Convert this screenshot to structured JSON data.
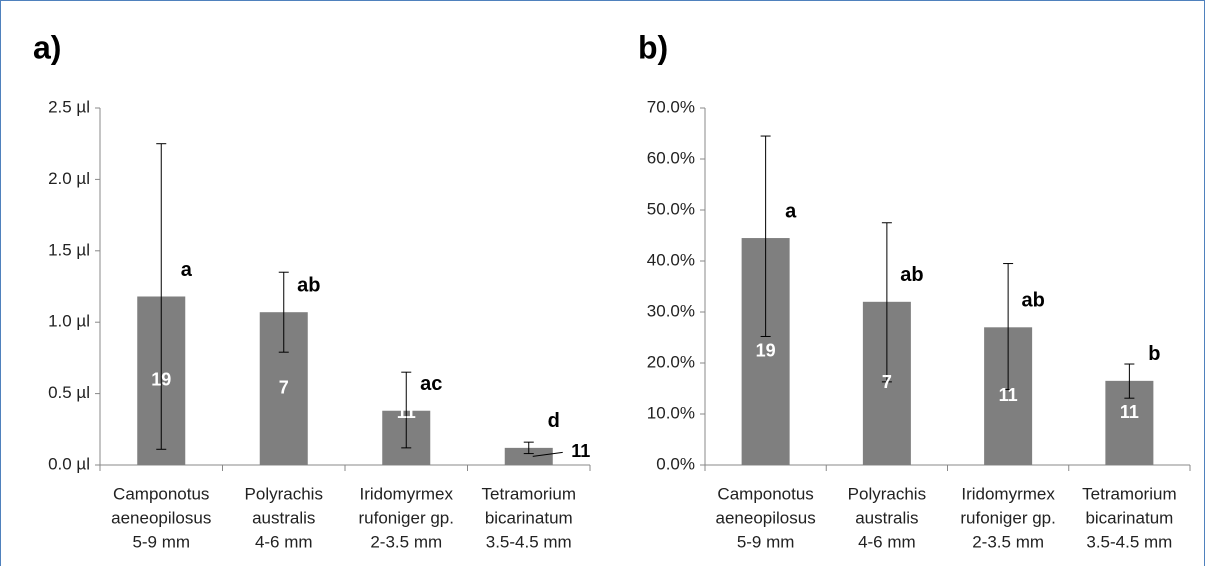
{
  "chart_data": [
    {
      "type": "bar",
      "title": "a)",
      "categories": [
        [
          "Camponotus",
          "aeneopilosus",
          "5-9 mm"
        ],
        [
          "Polyrachis",
          "australis",
          "4-6 mm"
        ],
        [
          "Iridomyrmex",
          "rufoniger gp.",
          "2-3.5 mm"
        ],
        [
          "Tetramorium",
          "bicarinatum",
          "3.5-4.5 mm"
        ]
      ],
      "values": [
        1.18,
        1.07,
        0.38,
        0.12
      ],
      "lower": [
        0.11,
        0.79,
        0.12,
        0.08
      ],
      "upper": [
        2.25,
        1.35,
        0.65,
        0.16
      ],
      "n": [
        19,
        7,
        11,
        11
      ],
      "letters": [
        "a",
        "ab",
        "ac",
        "d"
      ],
      "color": "#7f7f7f",
      "ylim": [
        0,
        2.5
      ],
      "yticks": [
        {
          "value": 0,
          "label": "0.0 µl"
        },
        {
          "value": 0.5,
          "label": "0.5 µl"
        },
        {
          "value": 1,
          "label": "1.0 µl"
        },
        {
          "value": 1.5,
          "label": "1.5 µl"
        },
        {
          "value": 2,
          "label": "2.0 µl"
        },
        {
          "value": 2.5,
          "label": "2.5 µl"
        }
      ]
    },
    {
      "type": "bar",
      "title": "b)",
      "categories": [
        [
          "Camponotus",
          "aeneopilosus",
          "5-9 mm"
        ],
        [
          "Polyrachis",
          "australis",
          "4-6 mm"
        ],
        [
          "Iridomyrmex",
          "rufoniger gp.",
          "2-3.5 mm"
        ],
        [
          "Tetramorium",
          "bicarinatum",
          "3.5-4.5 mm"
        ]
      ],
      "values": [
        44.5,
        32,
        27,
        16.5
      ],
      "lower": [
        25.2,
        16.3,
        14.8,
        13.1
      ],
      "upper": [
        64.5,
        47.5,
        39.5,
        19.8
      ],
      "n": [
        19,
        7,
        11,
        11
      ],
      "letters": [
        "a",
        "ab",
        "ab",
        "b"
      ],
      "color": "#7f7f7f",
      "ylim": [
        0,
        70
      ],
      "yticks": [
        {
          "value": 0,
          "label": "0.0%"
        },
        {
          "value": 10,
          "label": "10.0%"
        },
        {
          "value": 20,
          "label": "20.0%"
        },
        {
          "value": 30,
          "label": "30.0%"
        },
        {
          "value": 40,
          "label": "40.0%"
        },
        {
          "value": 50,
          "label": "50.0%"
        },
        {
          "value": 60,
          "label": "60.0%"
        },
        {
          "value": 70,
          "label": "70.0%"
        }
      ]
    }
  ]
}
